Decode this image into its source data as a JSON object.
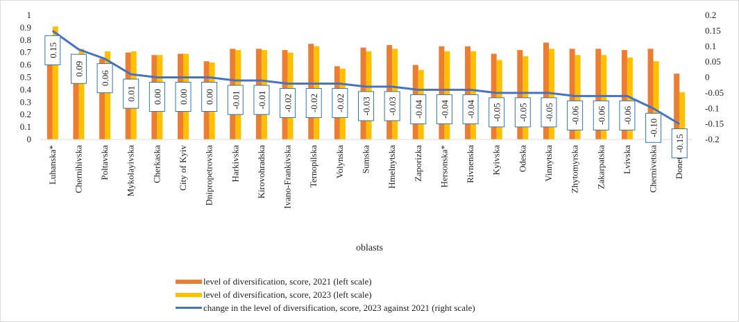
{
  "colors": {
    "series_2021": "#ED7D31",
    "series_2023": "#FFC000",
    "change_line": "#4472C4",
    "label_border": "#2E75B6"
  },
  "legend": {
    "s2021": "level of diversification, score, 2021 (left scale)",
    "s2023": "level of diversification, score, 2023 (left scale)",
    "change": "change in the level of diversification, score, 2023 against 2021 (right scale)"
  },
  "chart_data": {
    "type": "bar",
    "xlabel": "oblasts",
    "categories": [
      "Luhanska*",
      "Chernihivska",
      "Poltavska",
      "Mykolayivska",
      "Cherkaska",
      "City of Kyiv",
      "Dnipropetrovska",
      "Harkivska",
      "Kirovohradska",
      "Ivano-Frankivska",
      "Ternopilska",
      "Volynska",
      "Sumska",
      "Hmelnytska",
      "Zaporizka",
      "Hersonska*",
      "Rivnenska",
      "Kyivska",
      "Odeska",
      "Vinnytska",
      "Zhytomyrska",
      "Zakarpatska",
      "Lvivska",
      "Chernivetska",
      "Donetska"
    ],
    "series": [
      {
        "name": "level of diversification, score, 2021 (left scale)",
        "axis": "left",
        "kind": "bar",
        "values": [
          0.76,
          0.64,
          0.65,
          0.7,
          0.68,
          0.69,
          0.63,
          0.73,
          0.73,
          0.72,
          0.77,
          0.59,
          0.74,
          0.76,
          0.6,
          0.75,
          0.75,
          0.69,
          0.72,
          0.78,
          0.73,
          0.73,
          0.72,
          0.73,
          0.53
        ]
      },
      {
        "name": "level of diversification, score, 2023 (left scale)",
        "axis": "left",
        "kind": "bar",
        "values": [
          0.91,
          0.73,
          0.71,
          0.71,
          0.68,
          0.69,
          0.62,
          0.72,
          0.72,
          0.7,
          0.75,
          0.57,
          0.71,
          0.73,
          0.56,
          0.71,
          0.71,
          0.64,
          0.67,
          0.73,
          0.68,
          0.68,
          0.66,
          0.63,
          0.38
        ]
      },
      {
        "name": "change in the level of diversification, score, 2023 against 2021 (right scale)",
        "axis": "right",
        "kind": "line",
        "values": [
          0.15,
          0.09,
          0.06,
          0.01,
          0.0,
          0.0,
          0.0,
          -0.01,
          -0.01,
          -0.02,
          -0.02,
          -0.02,
          -0.03,
          -0.03,
          -0.04,
          -0.04,
          -0.04,
          -0.05,
          -0.05,
          -0.05,
          -0.06,
          -0.06,
          -0.06,
          -0.1,
          -0.15
        ],
        "data_labels": [
          "0.15",
          "0.09",
          "0.06",
          "0.01",
          "0.00",
          "0.00",
          "0.00",
          "-0.01",
          "-0.01",
          "-0.02",
          "-0.02",
          "-0.02",
          "-0.03",
          "-0.03",
          "-0.04",
          "-0.04",
          "-0.04",
          "-0.05",
          "-0.05",
          "-0.05",
          "-0.06",
          "-0.06",
          "-0.06",
          "-0.10",
          "-0.15"
        ]
      }
    ],
    "y_left": {
      "ylim": [
        0,
        1
      ],
      "ticks": [
        "0",
        "0.1",
        "0.2",
        "0.3",
        "0.4",
        "0.5",
        "0.6",
        "0.7",
        "0.8",
        "0.9",
        "1"
      ]
    },
    "y_right": {
      "ylim": [
        -0.2,
        0.2
      ],
      "ticks": [
        "-0.2",
        "-0.15",
        "-0.1",
        "-0.05",
        "0",
        "0.05",
        "0.1",
        "0.15",
        "0.2"
      ]
    },
    "grid": false,
    "legend_position": "bottom"
  }
}
